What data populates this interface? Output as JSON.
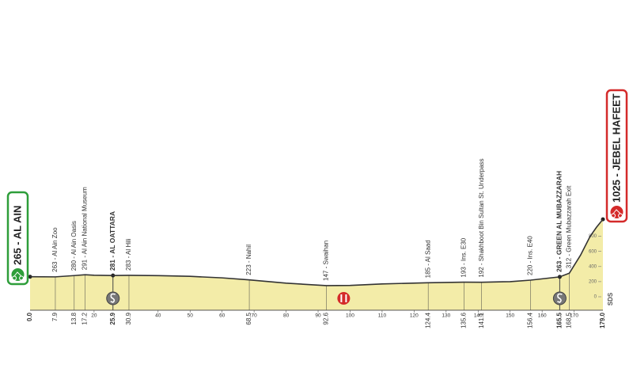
{
  "chart_data": {
    "type": "area",
    "color": "#f3eca8",
    "line_color": "#333333",
    "x": [
      0,
      7.9,
      13.8,
      17.2,
      20,
      25.9,
      30.9,
      40,
      50,
      60,
      68.5,
      80,
      92.6,
      100,
      110,
      124.4,
      135.6,
      141.1,
      150,
      156.4,
      165.5,
      168.5,
      172,
      175,
      177,
      179
    ],
    "values": [
      265,
      263,
      280,
      291,
      285,
      281,
      283,
      280,
      270,
      250,
      223,
      180,
      147,
      150,
      170,
      185,
      193,
      192,
      200,
      220,
      263,
      312,
      550,
      800,
      920,
      1025
    ],
    "xlim": [
      0,
      179
    ],
    "ylim": [
      -178,
      3508
    ],
    "xticks": [
      20,
      40,
      50,
      60,
      70,
      80,
      90,
      100,
      110,
      120,
      130,
      140,
      150,
      160,
      170
    ],
    "yticks": [
      0,
      200,
      400,
      600,
      800
    ],
    "start": {
      "km": {
        "value": 0,
        "label": "0.0"
      },
      "label": "265 - AL AIN",
      "color": "#2e9e3a"
    },
    "finish": {
      "km": {
        "value": 179,
        "label": "179.0"
      },
      "label": "1025 - JEBEL HAFEET",
      "color": "#d42a2a"
    },
    "waypoints": [
      {
        "km": 7.9,
        "label": "263 - Al Ain Zoo"
      },
      {
        "km": 13.8,
        "label": "280 - Al Ain Oasis"
      },
      {
        "km": 17.2,
        "label": "291 - Al Ain National Museum"
      },
      {
        "km": 25.9,
        "label": "281 - AL OATTARA",
        "bold": true,
        "sprint": true
      },
      {
        "km": 30.9,
        "label": "283 - Al Hili"
      },
      {
        "km": 68.5,
        "label": "223 - Nahil"
      },
      {
        "km": 92.6,
        "label": "147 - Swaihan"
      },
      {
        "km": 124.4,
        "label": "185 - Al Saad"
      },
      {
        "km": 135.6,
        "label": "193 - Ins. E30"
      },
      {
        "km": 141.1,
        "label": "192 - Shakhboot Bin Sultan St. Underpass"
      },
      {
        "km": 156.4,
        "label": "220 - Ins. E40"
      },
      {
        "km": 165.5,
        "label": "263 - GREEN AL MUBAZZARAH",
        "bold": true,
        "sprint": true
      },
      {
        "km": 168.5,
        "label": "312 - Green Mubazzarah Exit"
      }
    ],
    "feed_zone": 98,
    "logo": "SDS"
  }
}
